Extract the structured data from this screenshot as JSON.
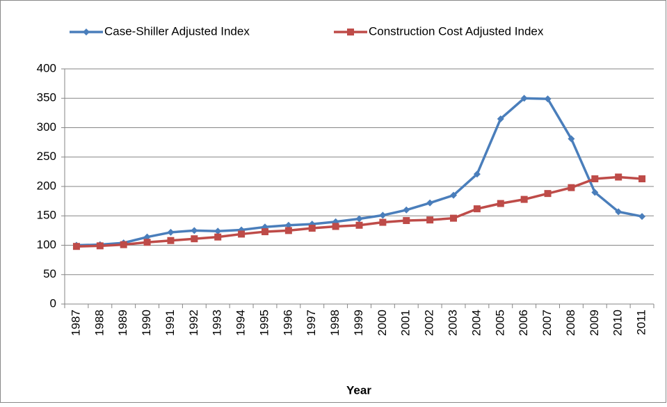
{
  "chart_data": {
    "type": "line",
    "x_label": "Year",
    "categories": [
      "1987",
      "1988",
      "1989",
      "1990",
      "1991",
      "1992",
      "1993",
      "1994",
      "1995",
      "1996",
      "1997",
      "1998",
      "1999",
      "2000",
      "2001",
      "2002",
      "2003",
      "2004",
      "2005",
      "2006",
      "2007",
      "2008",
      "2009",
      "2010",
      "2011"
    ],
    "series": [
      {
        "name": "Case-Shiller Adjusted Index",
        "color": "#4a7ebb",
        "marker": "diamond",
        "values": [
          100,
          101,
          104,
          114,
          122,
          125,
          124,
          126,
          131,
          134,
          136,
          140,
          145,
          151,
          160,
          172,
          185,
          221,
          315,
          350,
          349,
          281,
          190,
          157,
          149
        ]
      },
      {
        "name": "Construction Cost Adjusted Index",
        "color": "#be4b48",
        "marker": "square",
        "values": [
          98,
          99,
          101,
          105,
          108,
          111,
          114,
          119,
          123,
          125,
          129,
          132,
          134,
          139,
          142,
          143,
          146,
          162,
          171,
          178,
          188,
          198,
          213,
          216,
          213
        ]
      }
    ],
    "ylim": [
      0,
      400
    ],
    "yticks": [
      0,
      50,
      100,
      150,
      200,
      250,
      300,
      350,
      400
    ],
    "grid": true,
    "legend": "top"
  }
}
